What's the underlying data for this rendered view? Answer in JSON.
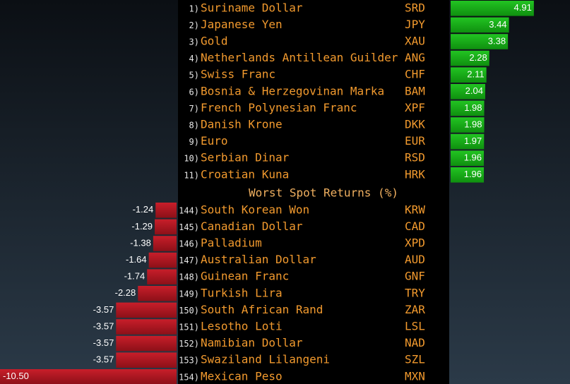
{
  "chart_data": [
    {
      "type": "bar",
      "color": "#16b516",
      "ranks": [
        "1)",
        "2)",
        "3)",
        "4)",
        "5)",
        "6)",
        "7)",
        "8)",
        "9)",
        "10)",
        "11)"
      ],
      "categories": [
        "Suriname Dollar",
        "Japanese Yen",
        "Gold",
        "Netherlands Antillean Guilder",
        "Swiss Franc",
        "Bosnia & Herzegovinan Marka",
        "French Polynesian Franc",
        "Danish Krone",
        "Euro",
        "Serbian Dinar",
        "Croatian Kuna"
      ],
      "codes": [
        "SRD",
        "JPY",
        "XAU",
        "ANG",
        "CHF",
        "BAM",
        "XPF",
        "DKK",
        "EUR",
        "RSD",
        "HRK"
      ],
      "values": [
        4.91,
        3.44,
        3.38,
        2.28,
        2.11,
        2.04,
        1.98,
        1.98,
        1.97,
        1.96,
        1.96
      ],
      "value_labels": [
        "4.91",
        "3.44",
        "3.38",
        "2.28",
        "2.11",
        "2.04",
        "1.98",
        "1.98",
        "1.97",
        "1.96",
        "1.96"
      ]
    },
    {
      "type": "bar",
      "title": "Worst Spot Returns (%)",
      "color": "#b01822",
      "ranks": [
        "144)",
        "145)",
        "146)",
        "147)",
        "148)",
        "149)",
        "150)",
        "151)",
        "152)",
        "153)",
        "154)"
      ],
      "categories": [
        "South Korean Won",
        "Canadian Dollar",
        "Palladium",
        "Australian Dollar",
        "Guinean Franc",
        "Turkish Lira",
        "South African Rand",
        "Lesotho Loti",
        "Namibian Dollar",
        "Swaziland Lilangeni",
        "Mexican Peso"
      ],
      "codes": [
        "KRW",
        "CAD",
        "XPD",
        "AUD",
        "GNF",
        "TRY",
        "ZAR",
        "LSL",
        "NAD",
        "SZL",
        "MXN"
      ],
      "values": [
        -1.24,
        -1.29,
        -1.38,
        -1.64,
        -1.74,
        -2.28,
        -3.57,
        -3.57,
        -3.57,
        -3.57,
        -10.5
      ],
      "value_labels": [
        "-1.24",
        "-1.29",
        "-1.38",
        "-1.64",
        "-1.74",
        "-2.28",
        "-3.57",
        "-3.57",
        "-3.57",
        "-3.57",
        "-10.50"
      ]
    }
  ]
}
